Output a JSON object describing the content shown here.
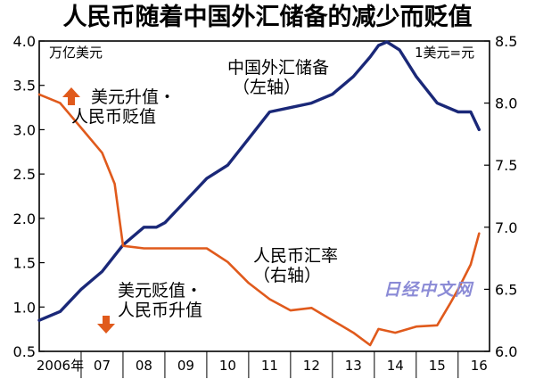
{
  "title": "人民币随着中国外汇储备的减少而贬值",
  "watermark": "日经中文网",
  "chart_data": {
    "type": "line",
    "title": "人民币随着中国外汇储备的减少而贬值",
    "left_axis": {
      "unit": "万亿美元",
      "ylim": [
        0.5,
        4.0
      ],
      "ticks": [
        "0.5",
        "1.0",
        "1.5",
        "2.0",
        "2.5",
        "3.0",
        "3.5",
        "4.0"
      ]
    },
    "right_axis": {
      "unit": "1美元=元",
      "ylim": [
        6.0,
        8.5
      ],
      "ticks": [
        "6.0",
        "6.5",
        "7.0",
        "7.5",
        "8.0",
        "8.5"
      ]
    },
    "x_categories": [
      "2006年",
      "07",
      "08",
      "09",
      "10",
      "11",
      "12",
      "13",
      "14",
      "15",
      "16"
    ],
    "series": [
      {
        "name": "中国外汇储备",
        "note": "（左轴）",
        "axis": "left",
        "color": "#1a2878",
        "x": [
          2006.0,
          2006.5,
          2007.0,
          2007.5,
          2008.0,
          2008.5,
          2008.8,
          2009.0,
          2009.5,
          2010.0,
          2010.5,
          2011.0,
          2011.5,
          2012.0,
          2012.5,
          2013.0,
          2013.5,
          2013.9,
          2014.1,
          2014.3,
          2014.6,
          2015.0,
          2015.5,
          2016.0,
          2016.3,
          2016.5
        ],
        "values": [
          0.85,
          0.95,
          1.2,
          1.4,
          1.7,
          1.9,
          1.9,
          1.95,
          2.2,
          2.45,
          2.6,
          2.9,
          3.2,
          3.25,
          3.3,
          3.4,
          3.6,
          3.82,
          3.95,
          3.99,
          3.9,
          3.6,
          3.3,
          3.2,
          3.2,
          3.0
        ]
      },
      {
        "name": "人民币汇率",
        "note": "（右轴）",
        "axis": "right",
        "color": "#e05a1c",
        "x": [
          2006.0,
          2006.5,
          2007.0,
          2007.5,
          2007.8,
          2008.0,
          2008.5,
          2009.0,
          2009.5,
          2010.0,
          2010.5,
          2011.0,
          2011.5,
          2012.0,
          2012.5,
          2013.0,
          2013.5,
          2013.9,
          2014.1,
          2014.5,
          2015.0,
          2015.5,
          2015.8,
          2016.0,
          2016.3,
          2016.5
        ],
        "values": [
          8.07,
          8.0,
          7.8,
          7.6,
          7.35,
          6.85,
          6.83,
          6.83,
          6.83,
          6.83,
          6.72,
          6.55,
          6.42,
          6.33,
          6.35,
          6.25,
          6.15,
          6.05,
          6.18,
          6.15,
          6.2,
          6.21,
          6.38,
          6.5,
          6.7,
          6.95
        ]
      }
    ],
    "annotations": [
      {
        "lines": [
          "美元升值・",
          "人民币贬值"
        ],
        "arrow": "up"
      },
      {
        "lines": [
          "美元贬值・",
          "人民币升值"
        ],
        "arrow": "down"
      }
    ],
    "grid": false
  }
}
